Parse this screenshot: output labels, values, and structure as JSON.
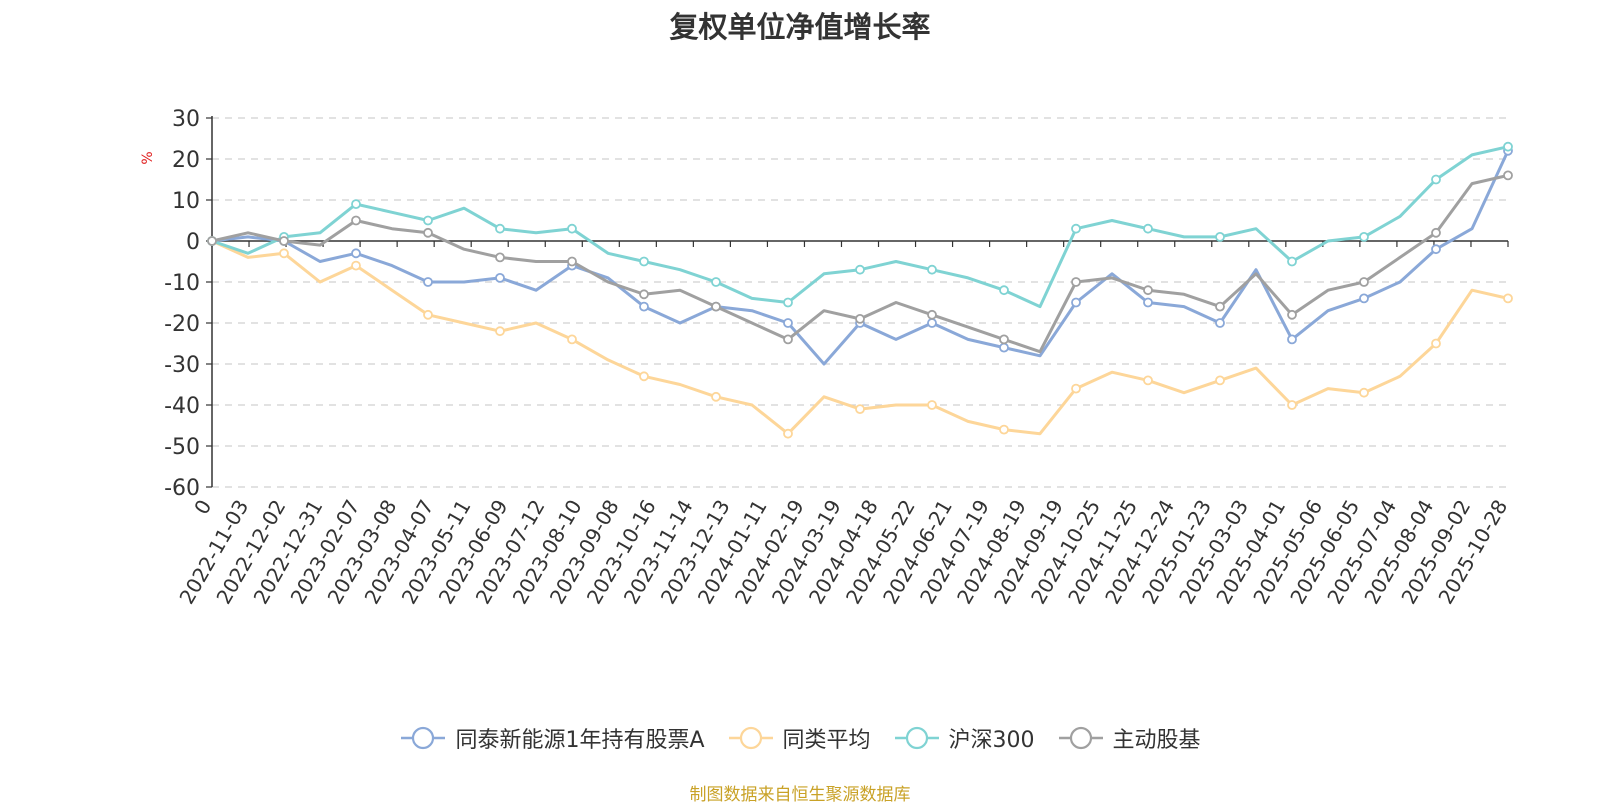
{
  "chart_data": {
    "type": "line",
    "title": "复权单位净值增长率",
    "ylabel": "%",
    "xlabel": "",
    "ylim": [
      -60,
      30
    ],
    "yticks": [
      30,
      20,
      10,
      0,
      -10,
      -20,
      -30,
      -40,
      -50,
      -60
    ],
    "x_tick_labels": [
      "0",
      "2022-11-03",
      "2022-12-02",
      "2022-12-31",
      "2023-02-07",
      "2023-03-08",
      "2023-04-07",
      "2023-05-11",
      "2023-06-09",
      "2023-07-12",
      "2023-08-10",
      "2023-09-08",
      "2023-10-16",
      "2023-11-14",
      "2023-12-13",
      "2024-01-11",
      "2024-02-19",
      "2024-03-19",
      "2024-04-18",
      "2024-05-22",
      "2024-06-21",
      "2024-07-19",
      "2024-08-19",
      "2024-09-19",
      "2024-10-25",
      "2024-11-25",
      "2024-12-24",
      "2025-01-23",
      "2025-03-03",
      "2025-04-01",
      "2025-05-06",
      "2025-06-05",
      "2025-07-04",
      "2025-08-04",
      "2025-09-02",
      "2025-10-28"
    ],
    "grid": true,
    "legend_position": "bottom",
    "series": [
      {
        "name": "同泰新能源1年持有股票A",
        "color": "#8aa8d8",
        "values": [
          0,
          1,
          0,
          -5,
          -3,
          -6,
          -10,
          -10,
          -9,
          -12,
          -6,
          -9,
          -16,
          -20,
          -16,
          -17,
          -20,
          -30,
          -20,
          -24,
          -20,
          -24,
          -26,
          -28,
          -15,
          -8,
          -15,
          -16,
          -20,
          -7,
          -24,
          -17,
          -14,
          -10,
          -2,
          3,
          22
        ]
      },
      {
        "name": "同类平均",
        "color": "#fdd699",
        "values": [
          0,
          -4,
          -3,
          -10,
          -6,
          -12,
          -18,
          -20,
          -22,
          -20,
          -24,
          -29,
          -33,
          -35,
          -38,
          -40,
          -47,
          -38,
          -41,
          -40,
          -40,
          -44,
          -46,
          -47,
          -36,
          -32,
          -34,
          -37,
          -34,
          -31,
          -40,
          -36,
          -37,
          -33,
          -25,
          -12,
          -14
        ]
      },
      {
        "name": "沪深300",
        "color": "#7fd3d3",
        "values": [
          0,
          -3,
          1,
          2,
          9,
          7,
          5,
          8,
          3,
          2,
          3,
          -3,
          -5,
          -7,
          -10,
          -14,
          -15,
          -8,
          -7,
          -5,
          -7,
          -9,
          -12,
          -16,
          3,
          5,
          3,
          1,
          1,
          3,
          -5,
          0,
          1,
          6,
          15,
          21,
          23
        ]
      },
      {
        "name": "主动股基",
        "color": "#a0a0a0",
        "values": [
          0,
          2,
          0,
          -1,
          5,
          3,
          2,
          -2,
          -4,
          -5,
          -5,
          -10,
          -13,
          -12,
          -16,
          -20,
          -24,
          -17,
          -19,
          -15,
          -18,
          -21,
          -24,
          -27,
          -10,
          -9,
          -12,
          -13,
          -16,
          -8,
          -18,
          -12,
          -10,
          -4,
          2,
          14,
          16
        ]
      }
    ]
  },
  "source_note": "制图数据来自恒生聚源数据库"
}
